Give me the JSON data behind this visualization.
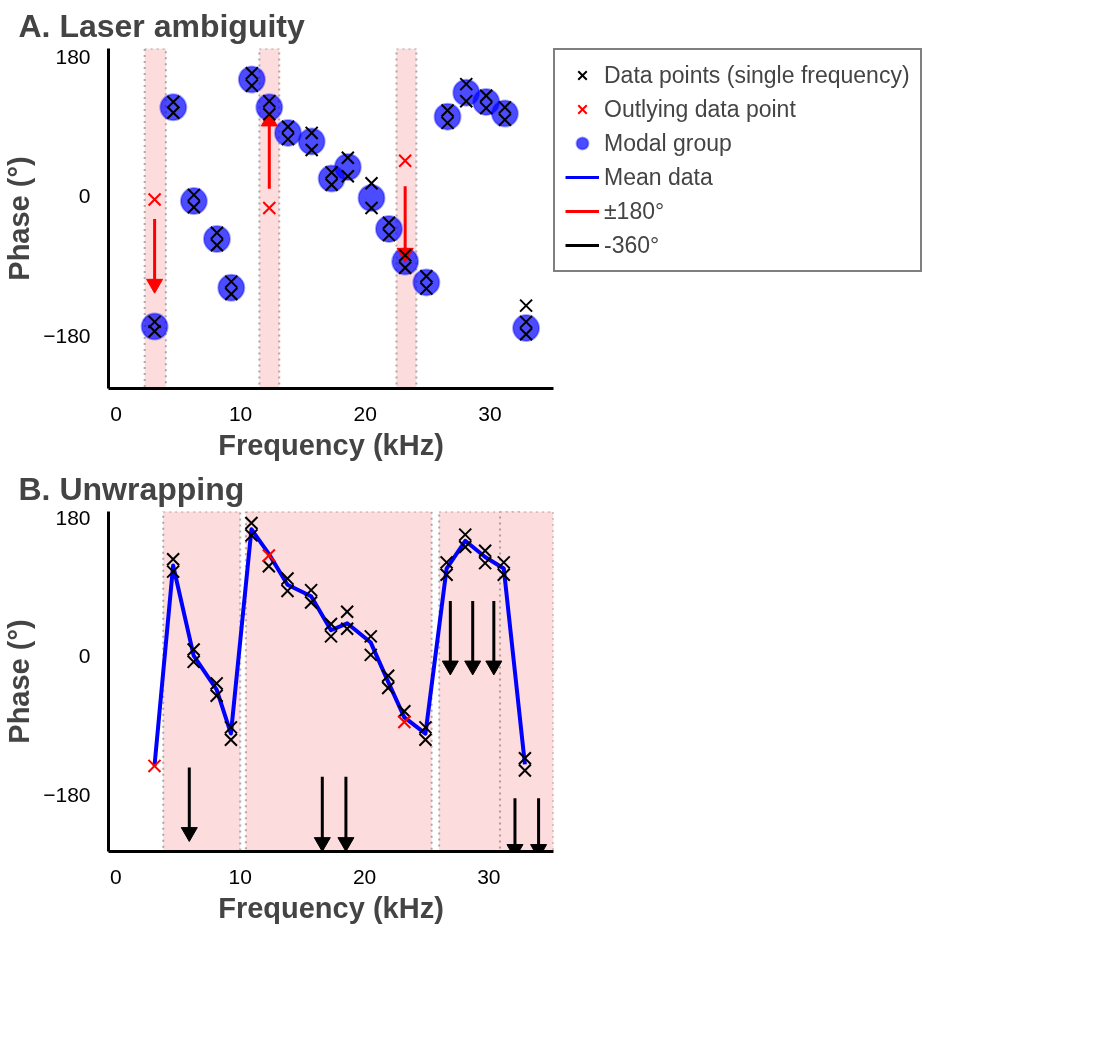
{
  "chart_data": [
    {
      "type": "scatter",
      "title": "A. Laser ambiguity",
      "xlabel": "Frequency (kHz)",
      "ylabel": "Phase (°)",
      "xlim": [
        -0.6,
        35.1
      ],
      "ylim": [
        -248,
        191
      ],
      "xticks": [
        0,
        10,
        20,
        30
      ],
      "yticks": [
        -180,
        0,
        180
      ],
      "grid": false,
      "legend": "right",
      "bands": [
        {
          "axis": "x",
          "from": 2.3,
          "to": 4.0,
          "color": "#fcdcdc"
        },
        {
          "axis": "x",
          "from": 11.5,
          "to": 13.1,
          "color": "#fcdcdc"
        },
        {
          "axis": "x",
          "from": 22.5,
          "to": 24.1,
          "color": "#fcdcdc"
        }
      ],
      "series": [
        {
          "name": "Data points (single frequency)",
          "color": "#000000",
          "marker": "cross",
          "x": [
            3.1,
            3.1,
            4.6,
            4.6,
            6.25,
            6.25,
            8.1,
            8.1,
            9.25,
            9.25,
            10.9,
            10.9,
            12.3,
            12.3,
            13.8,
            13.8,
            15.7,
            15.7,
            17.3,
            17.3,
            18.6,
            18.6,
            20.5,
            20.5,
            21.9,
            21.9,
            23.2,
            23.2,
            24.9,
            24.9,
            26.6,
            26.6,
            28.1,
            28.1,
            29.7,
            29.7,
            31.2,
            31.2,
            32.9,
            32.9,
            32.9
          ],
          "values": [
            -162,
            -174,
            122,
            108,
            2,
            -14,
            -47,
            -63,
            -110,
            -126,
            159,
            143,
            123,
            106,
            90,
            74,
            82,
            60,
            31,
            15,
            50,
            26,
            17,
            -15,
            -34,
            -50,
            -76,
            -92,
            -103,
            -119,
            111,
            95,
            145,
            123,
            130,
            114,
            115,
            99,
            -141,
            -162,
            -178
          ]
        },
        {
          "name": "Outlying data point",
          "color": "#ff0000",
          "marker": "cross",
          "x": [
            3.1,
            12.3,
            23.2
          ],
          "values": [
            -4,
            -15,
            46
          ]
        },
        {
          "name": "Modal group",
          "color": "#0000ff",
          "marker": "circle",
          "x": [
            3.1,
            4.6,
            6.25,
            8.1,
            9.25,
            10.9,
            12.3,
            13.8,
            15.7,
            17.3,
            18.6,
            20.5,
            21.9,
            23.2,
            24.9,
            26.6,
            28.1,
            29.7,
            31.2,
            32.9
          ],
          "values": [
            -168,
            115,
            -6,
            -55,
            -118,
            151,
            115,
            82,
            71,
            23,
            38,
            -2,
            -42,
            -84,
            -111,
            103,
            134,
            122,
            107,
            -170
          ]
        },
        {
          "name": "±180°",
          "type": "line",
          "color": "#ff0000",
          "marker": "triangle",
          "x": [
            3.1,
            3.1,
            null,
            12.3,
            12.3,
            null,
            23.2,
            23.2
          ],
          "values": [
            -29,
            -113,
            null,
            10,
            97,
            null,
            13,
            -73
          ]
        }
      ]
    },
    {
      "type": "scatter",
      "title": "B. Unwrapping",
      "xlabel": "Frequency (kHz)",
      "ylabel": "Phase (°)",
      "xlim": [
        -0.6,
        35.2
      ],
      "ylim": [
        -253,
        188
      ],
      "xticks": [
        0,
        10,
        20,
        30
      ],
      "yticks": [
        -180,
        0,
        180
      ],
      "grid": false,
      "bands": [
        {
          "axis": "x",
          "from": 3.8,
          "to": 10.0,
          "color": "#fcdcdc"
        },
        {
          "axis": "x",
          "from": 10.45,
          "to": 25.4,
          "color": "#fcdcdc"
        },
        {
          "axis": "x",
          "from": 26.0,
          "to": 32.4,
          "color": "#fcdcdc"
        },
        {
          "axis": "x",
          "from": 30.9,
          "to": 35.2,
          "color": "#fcdcdc"
        }
      ],
      "series": [
        {
          "name": "Mean data",
          "type": "line",
          "color": "#0000ff",
          "marker": "none",
          "x": [
            3.1,
            4.6,
            6.25,
            8.1,
            9.25,
            10.9,
            12.3,
            13.8,
            15.7,
            17.3,
            18.6,
            20.5,
            21.9,
            23.2,
            24.9,
            26.6,
            28.1,
            29.7,
            31.2,
            32.9
          ],
          "values": [
            -142,
            118,
            1,
            -43,
            -100,
            165,
            133,
            93,
            78,
            34,
            43,
            18,
            -33,
            -79,
            -100,
            114,
            150,
            129,
            114,
            -140
          ]
        },
        {
          "color": "#000000",
          "marker": "cross",
          "x": [
            4.6,
            4.6,
            6.25,
            6.25,
            8.1,
            8.1,
            9.25,
            9.25,
            10.9,
            10.9,
            12.3,
            13.8,
            13.8,
            15.7,
            15.7,
            17.3,
            17.3,
            18.6,
            18.6,
            20.5,
            20.5,
            21.9,
            21.9,
            23.2,
            24.9,
            24.9,
            26.6,
            26.6,
            28.1,
            28.1,
            29.7,
            29.7,
            31.2,
            31.2,
            32.9,
            32.9
          ],
          "values": [
            126,
            110,
            9,
            -7,
            -35,
            -51,
            -92,
            -108,
            173,
            157,
            117,
            101,
            85,
            86,
            70,
            42,
            26,
            58,
            36,
            26,
            2,
            -25,
            -41,
            -71,
            -92,
            -108,
            122,
            106,
            158,
            142,
            137,
            121,
            122,
            106,
            -132,
            -148
          ]
        },
        {
          "color": "#ff0000",
          "marker": "cross",
          "x": [
            3.1,
            12.3,
            23.2
          ],
          "values": [
            -142,
            131,
            -85
          ]
        },
        {
          "name": "-360°",
          "type": "line",
          "color": "#000000",
          "marker": "triangle",
          "x": [
            5.9,
            5.9,
            null,
            16.6,
            16.6,
            null,
            18.5,
            18.5,
            null,
            26.9,
            26.9,
            null,
            28.7,
            28.7,
            null,
            30.4,
            30.4,
            null,
            32.1,
            32.1,
            null,
            34.0,
            34.0
          ],
          "values": [
            -144,
            -228,
            null,
            -156,
            -241,
            null,
            -156,
            -241,
            null,
            72,
            -12,
            null,
            72,
            -12,
            null,
            72,
            -12,
            null,
            -184,
            -250,
            null,
            -184,
            -250
          ]
        }
      ]
    }
  ]
}
